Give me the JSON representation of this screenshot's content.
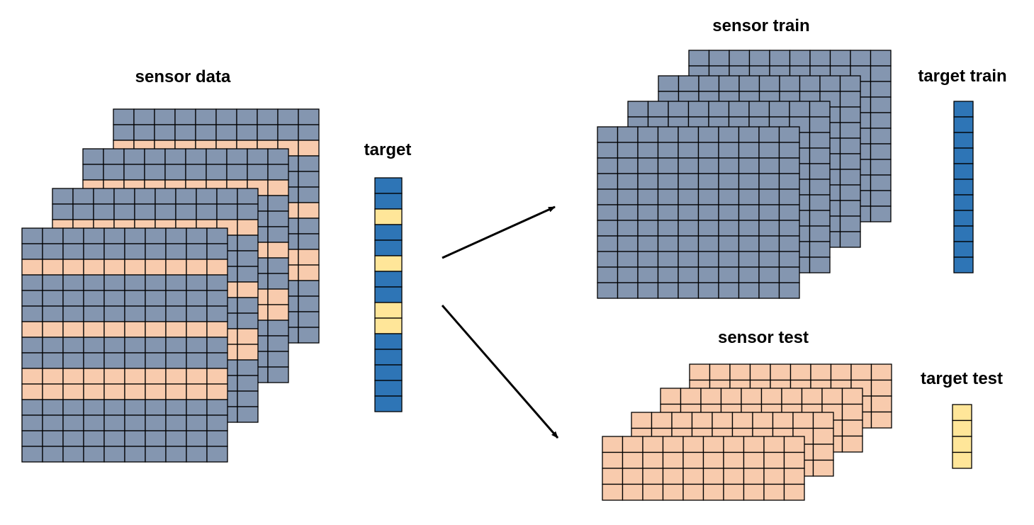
{
  "labels": {
    "sensor_data": "sensor data",
    "target": "target",
    "sensor_train": "sensor train",
    "target_train": "target train",
    "sensor_test": "sensor test",
    "target_test": "target test"
  },
  "colors": {
    "train": "#8496b0",
    "test": "#f8cbad",
    "target_train": "#2e75b6",
    "target_test": "#ffe699",
    "grid_line": "#000000",
    "arrow": "#000000"
  },
  "sensor_data": {
    "layers": 4,
    "columns": 10,
    "rows": [
      "train",
      "train",
      "test",
      "train",
      "train",
      "train",
      "test",
      "train",
      "train",
      "test",
      "test",
      "train",
      "train",
      "train",
      "train"
    ]
  },
  "target": {
    "rows": [
      "train",
      "train",
      "test",
      "train",
      "train",
      "test",
      "train",
      "train",
      "test",
      "test",
      "train",
      "train",
      "train",
      "train",
      "train"
    ]
  },
  "sensor_train": {
    "layers": 4,
    "columns": 10,
    "rows": 11,
    "kind": "train"
  },
  "target_train": {
    "rows": 11,
    "kind": "train"
  },
  "sensor_test": {
    "layers": 4,
    "columns": 10,
    "rows": 4,
    "kind": "test"
  },
  "target_test": {
    "rows": 4,
    "kind": "test"
  }
}
